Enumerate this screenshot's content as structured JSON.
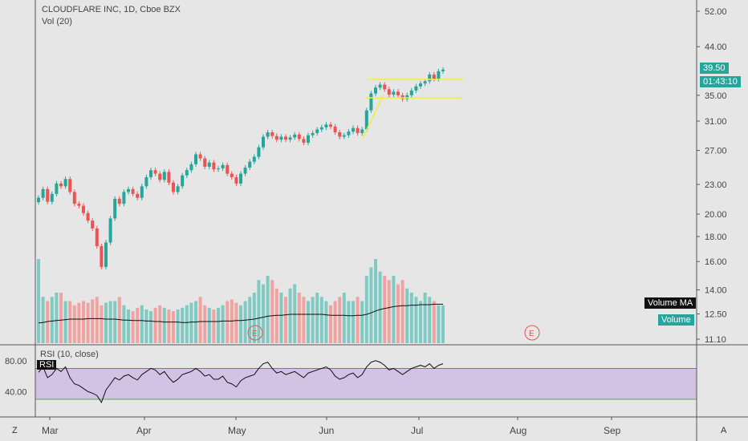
{
  "header": {
    "symbol": "CLOUDFLARE INC, 1D, Cboe BZX",
    "volume_indicator": "Vol (20)"
  },
  "price_panel": {
    "last_price": "39.50",
    "countdown": "01:43:10",
    "volume_ma_label": "Volume MA",
    "volume_label": "Volume",
    "earnings_marker": "E"
  },
  "rsi_panel": {
    "label": "RSI (10, close)",
    "tag": "RSI",
    "upper_level": 70,
    "lower_level": 30
  },
  "bottom_bar": {
    "left_button": "Z",
    "right_button": "A"
  },
  "colors": {
    "up": "#26a69a",
    "down": "#ef5350",
    "background": "#e6e6e6",
    "rsi_band": "#d3c2e4",
    "trendline": "#f2ee3a",
    "price_badge": "#26a69a",
    "volume_ma_badge": "#111111"
  },
  "chart_data": {
    "type": "candlestick",
    "title": "CLOUDFLARE INC, 1D, Cboe BZX",
    "y_scale": "log",
    "price_ticks": [
      52.0,
      44.0,
      35.0,
      31.0,
      27.0,
      23.0,
      20.0,
      18.0,
      16.0,
      14.0,
      12.5,
      11.1
    ],
    "x_ticks": [
      "Mar",
      "Apr",
      "May",
      "Jun",
      "Jul",
      "Aug",
      "Sep"
    ],
    "closes": [
      21.6,
      22.5,
      21.2,
      22.0,
      23.1,
      22.8,
      23.6,
      22.2,
      21.0,
      20.8,
      20.1,
      19.4,
      18.7,
      17.2,
      15.6,
      17.5,
      19.6,
      21.5,
      21.0,
      22.2,
      22.5,
      22.0,
      21.6,
      22.8,
      23.8,
      24.6,
      24.2,
      23.5,
      24.4,
      23.2,
      22.2,
      22.8,
      24.0,
      24.6,
      25.3,
      26.5,
      26.0,
      25.0,
      25.5,
      24.7,
      24.8,
      25.2,
      24.2,
      23.8,
      23.1,
      24.2,
      24.9,
      25.6,
      26.2,
      27.4,
      28.8,
      29.4,
      28.9,
      28.4,
      28.8,
      28.4,
      28.7,
      29.1,
      28.5,
      28.0,
      29.0,
      29.3,
      29.8,
      30.1,
      30.5,
      30.2,
      29.4,
      28.8,
      29.0,
      29.5,
      30.0,
      29.3,
      29.8,
      32.6,
      35.3,
      36.3,
      36.8,
      36.0,
      35.1,
      35.6,
      35.0,
      34.4,
      35.0,
      35.8,
      36.5,
      37.0,
      37.4,
      38.6,
      37.8,
      39.2,
      39.5
    ],
    "volumes": [
      1.0,
      0.55,
      0.5,
      0.55,
      0.6,
      0.6,
      0.5,
      0.5,
      0.45,
      0.48,
      0.5,
      0.48,
      0.52,
      0.55,
      0.45,
      0.48,
      0.5,
      0.5,
      0.55,
      0.45,
      0.4,
      0.38,
      0.42,
      0.45,
      0.4,
      0.38,
      0.42,
      0.45,
      0.42,
      0.4,
      0.38,
      0.4,
      0.42,
      0.45,
      0.48,
      0.5,
      0.55,
      0.45,
      0.42,
      0.4,
      0.42,
      0.45,
      0.5,
      0.52,
      0.48,
      0.45,
      0.5,
      0.55,
      0.6,
      0.75,
      0.7,
      0.8,
      0.75,
      0.65,
      0.6,
      0.55,
      0.65,
      0.7,
      0.6,
      0.55,
      0.5,
      0.55,
      0.6,
      0.55,
      0.5,
      0.45,
      0.5,
      0.55,
      0.6,
      0.5,
      0.5,
      0.55,
      0.5,
      0.8,
      0.9,
      1.0,
      0.85,
      0.8,
      0.75,
      0.8,
      0.7,
      0.75,
      0.65,
      0.6,
      0.55,
      0.5,
      0.6,
      0.55,
      0.5,
      0.45,
      0.45
    ],
    "volume_ma": [
      0.42,
      0.43,
      0.45,
      0.46,
      0.47,
      0.48,
      0.49,
      0.5,
      0.5,
      0.5,
      0.5,
      0.51,
      0.51,
      0.51,
      0.51,
      0.5,
      0.5,
      0.5,
      0.49,
      0.48,
      0.48,
      0.47,
      0.47,
      0.47,
      0.46,
      0.46,
      0.45,
      0.45,
      0.44,
      0.44,
      0.44,
      0.44,
      0.43,
      0.43,
      0.44,
      0.44,
      0.45,
      0.45,
      0.45,
      0.45,
      0.45,
      0.46,
      0.46,
      0.46,
      0.47,
      0.47,
      0.48,
      0.49,
      0.5,
      0.52,
      0.54,
      0.56,
      0.57,
      0.58,
      0.58,
      0.59,
      0.6,
      0.6,
      0.6,
      0.6,
      0.6,
      0.6,
      0.6,
      0.6,
      0.59,
      0.58,
      0.58,
      0.58,
      0.58,
      0.57,
      0.57,
      0.58,
      0.58,
      0.6,
      0.63,
      0.67,
      0.7,
      0.72,
      0.74,
      0.76,
      0.77,
      0.78,
      0.78,
      0.79,
      0.79,
      0.8,
      0.8,
      0.8,
      0.81,
      0.81,
      0.81
    ],
    "rsi": [
      65,
      72,
      58,
      62,
      70,
      66,
      72,
      58,
      50,
      48,
      44,
      40,
      38,
      35,
      26,
      42,
      50,
      58,
      55,
      60,
      62,
      58,
      55,
      62,
      66,
      70,
      68,
      62,
      66,
      58,
      52,
      56,
      62,
      64,
      66,
      70,
      66,
      60,
      62,
      56,
      56,
      60,
      52,
      50,
      46,
      54,
      58,
      60,
      62,
      70,
      76,
      78,
      70,
      64,
      66,
      62,
      64,
      66,
      62,
      58,
      64,
      66,
      68,
      70,
      72,
      68,
      60,
      56,
      58,
      62,
      64,
      58,
      62,
      72,
      78,
      80,
      78,
      74,
      68,
      70,
      66,
      62,
      66,
      70,
      72,
      74,
      72,
      76,
      70,
      74,
      76
    ],
    "earnings_dates": [
      "May",
      "Aug"
    ]
  }
}
